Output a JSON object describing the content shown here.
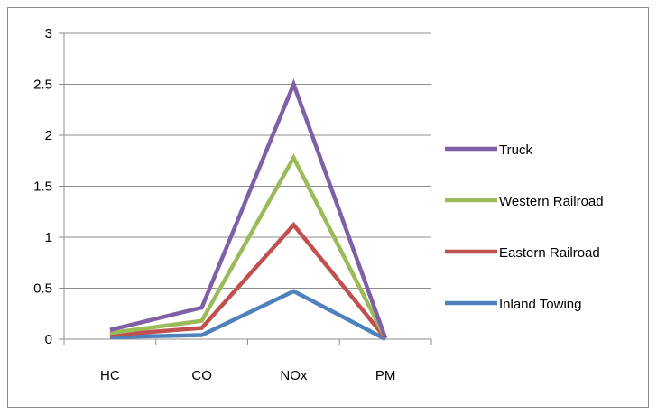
{
  "chart_data": {
    "type": "line",
    "categories": [
      "HC",
      "CO",
      "NOx",
      "PM"
    ],
    "ylim": [
      0,
      3
    ],
    "yticks": [
      "0",
      "0.5",
      "1",
      "1.5",
      "2",
      "2.5",
      "3"
    ],
    "grid": true,
    "legend_position": "right",
    "series": [
      {
        "name": "Truck",
        "color": "#7f5fa6",
        "values": [
          0.09,
          0.31,
          2.5,
          0.01
        ]
      },
      {
        "name": "Western Railroad",
        "color": "#9bbb59",
        "values": [
          0.06,
          0.18,
          1.78,
          0.01
        ]
      },
      {
        "name": "Eastern Railroad",
        "color": "#c0504d",
        "values": [
          0.04,
          0.11,
          1.12,
          0.01
        ]
      },
      {
        "name": "Inland Towing",
        "color": "#4f81bd",
        "values": [
          0.02,
          0.04,
          0.47,
          0.0
        ]
      }
    ]
  }
}
